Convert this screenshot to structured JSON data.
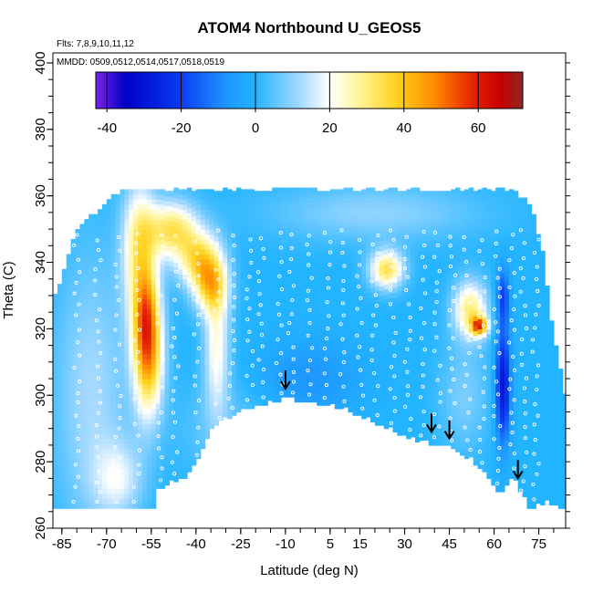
{
  "chart_data": {
    "type": "heatmap",
    "title": "ATOM4 Northbound U_GEOS5",
    "subtitle_flts": "Flts: 7,8,9,10,11,12",
    "subtitle_mmdd": "MMDD: 0509,0512,0514,0517,0518,0519",
    "xlabel": "Latitude (deg N)",
    "ylabel": "Theta (C)",
    "xlim": [
      -88,
      84
    ],
    "ylim": [
      260,
      403
    ],
    "x_ticks": [
      -85,
      -70,
      -55,
      -40,
      -25,
      -10,
      5,
      15,
      30,
      45,
      60,
      75
    ],
    "x_tick_labels": [
      "-85",
      "-70",
      "-55",
      "-40",
      "-25",
      "-10",
      "5",
      "15",
      "30",
      "45",
      "60",
      "75"
    ],
    "y_ticks": [
      260,
      280,
      300,
      320,
      340,
      360,
      380,
      400
    ],
    "y_tick_labels": [
      "260",
      "280",
      "300",
      "320",
      "340",
      "360",
      "380",
      "400"
    ],
    "colorbar": {
      "range": [
        -43,
        72
      ],
      "ticks": [
        -40,
        -20,
        0,
        20,
        40,
        60
      ],
      "tick_labels": [
        "-40",
        "-20",
        "0",
        "20",
        "40",
        "60"
      ],
      "stops": [
        {
          "v": -43,
          "color": "#7B22E6"
        },
        {
          "v": -35,
          "color": "#0000C8"
        },
        {
          "v": -20,
          "color": "#0A3CF0"
        },
        {
          "v": -8,
          "color": "#1E96FF"
        },
        {
          "v": 0,
          "color": "#23B4FF"
        },
        {
          "v": 12,
          "color": "#A6DAFF"
        },
        {
          "v": 20,
          "color": "#FFFFFF"
        },
        {
          "v": 28,
          "color": "#FFF59A"
        },
        {
          "v": 38,
          "color": "#FFD21E"
        },
        {
          "v": 48,
          "color": "#FF8C00"
        },
        {
          "v": 58,
          "color": "#E62800"
        },
        {
          "v": 66,
          "color": "#C80000"
        },
        {
          "v": 72,
          "color": "#8C2828"
        }
      ]
    },
    "domain_top": [
      [
        -88,
        328
      ],
      [
        -80,
        350
      ],
      [
        -65,
        362
      ],
      [
        -50,
        362
      ],
      [
        -30,
        362
      ],
      [
        -10,
        362
      ],
      [
        10,
        362
      ],
      [
        40,
        362
      ],
      [
        66,
        362
      ],
      [
        72,
        358
      ],
      [
        76,
        345
      ],
      [
        80,
        318
      ],
      [
        84,
        300
      ]
    ],
    "domain_bottom": [
      [
        -86,
        266
      ],
      [
        -68,
        266
      ],
      [
        -55,
        266
      ],
      [
        -53,
        266
      ],
      [
        -53,
        272
      ],
      [
        -48,
        274
      ],
      [
        -43,
        276
      ],
      [
        -40,
        280
      ],
      [
        -35,
        290
      ],
      [
        -25,
        296
      ],
      [
        -10,
        299
      ],
      [
        0,
        298
      ],
      [
        10,
        296
      ],
      [
        20,
        292
      ],
      [
        35,
        286
      ],
      [
        45,
        285
      ],
      [
        52,
        281
      ],
      [
        58,
        276
      ],
      [
        62,
        270
      ],
      [
        66,
        276
      ],
      [
        72,
        266
      ],
      [
        78,
        268
      ],
      [
        84,
        266
      ]
    ],
    "background_value": 0,
    "features": [
      {
        "lat": -56,
        "theta": 312,
        "peak": 42,
        "lat_sigma": 3.5,
        "theta_sigma": 13
      },
      {
        "lat": -59,
        "theta": 345,
        "peak": 28,
        "lat_sigma": 4,
        "theta_sigma": 14
      },
      {
        "lat": -57,
        "theta": 325,
        "peak": 25,
        "lat_sigma": 3,
        "theta_sigma": 10
      },
      {
        "lat": -48,
        "theta": 350,
        "peak": 32,
        "lat_sigma": 6,
        "theta_sigma": 6
      },
      {
        "lat": -39,
        "theta": 341,
        "peak": 30,
        "lat_sigma": 5,
        "theta_sigma": 6
      },
      {
        "lat": -35,
        "theta": 333,
        "peak": 30,
        "lat_sigma": 4,
        "theta_sigma": 6
      },
      {
        "lat": -33,
        "theta": 315,
        "peak": 22,
        "lat_sigma": 3,
        "theta_sigma": 14
      },
      {
        "lat": -75,
        "theta": 300,
        "peak": 12,
        "lat_sigma": 9,
        "theta_sigma": 30
      },
      {
        "lat": -66,
        "theta": 275,
        "peak": 15,
        "lat_sigma": 6,
        "theta_sigma": 8
      },
      {
        "lat": 24,
        "theta": 338,
        "peak": 34,
        "lat_sigma": 4,
        "theta_sigma": 4
      },
      {
        "lat": 52,
        "theta": 326,
        "peak": 30,
        "lat_sigma": 4,
        "theta_sigma": 6
      },
      {
        "lat": 55,
        "theta": 321,
        "peak": 45,
        "lat_sigma": 2,
        "theta_sigma": 2
      },
      {
        "lat": 50,
        "theta": 300,
        "peak": 8,
        "lat_sigma": 6,
        "theta_sigma": 12
      },
      {
        "lat": 63,
        "theta": 303,
        "peak": -30,
        "lat_sigma": 1.8,
        "theta_sigma": 12
      },
      {
        "lat": 63,
        "theta": 330,
        "peak": -18,
        "lat_sigma": 1.6,
        "theta_sigma": 6
      },
      {
        "lat": 20,
        "theta": 355,
        "peak": 10,
        "lat_sigma": 25,
        "theta_sigma": 6
      },
      {
        "lat": -30,
        "theta": 290,
        "peak": 6,
        "lat_sigma": 12,
        "theta_sigma": 10
      },
      {
        "lat": -2,
        "theta": 305,
        "peak": -8,
        "lat_sigma": 12,
        "theta_sigma": 8
      }
    ],
    "arrows": [
      {
        "lat": -10,
        "theta": 302
      },
      {
        "lat": 39,
        "theta": 289
      },
      {
        "lat": 45,
        "theta": 287
      },
      {
        "lat": 68,
        "theta": 275
      }
    ],
    "flight_tracks_lat": [
      -80,
      -73,
      -66,
      -60,
      -52,
      -47,
      -40,
      -33,
      -28,
      -22,
      -18,
      -12,
      -8,
      -2,
      4,
      9,
      15,
      20,
      26,
      31,
      36,
      41,
      46,
      51,
      56,
      61,
      66,
      70,
      74
    ]
  }
}
